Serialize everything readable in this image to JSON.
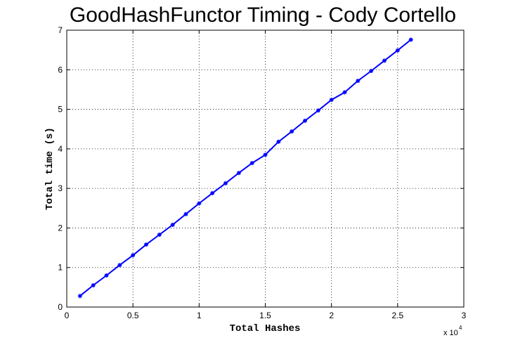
{
  "chart_data": {
    "type": "line",
    "title": "GoodHashFunctor Timing - Cody Cortello",
    "xlabel": "Total Hashes",
    "ylabel": "Total time (s)",
    "x_multiplier_label": "x 10",
    "x_multiplier_exponent": "4",
    "xlim": [
      0,
      3
    ],
    "ylim": [
      0,
      7
    ],
    "xticks": [
      "0",
      "0.5",
      "1",
      "1.5",
      "2",
      "2.5",
      "3"
    ],
    "yticks": [
      "0",
      "1",
      "2",
      "3",
      "4",
      "5",
      "6",
      "7"
    ],
    "grid": true,
    "color": "#0000ff",
    "marker": "asterisk",
    "series": [
      {
        "x": [
          0.1,
          0.2,
          0.3,
          0.4,
          0.5,
          0.6,
          0.7,
          0.8,
          0.9,
          1.0,
          1.1,
          1.2,
          1.3,
          1.4,
          1.5,
          1.6,
          1.7,
          1.8,
          1.9,
          2.0,
          2.1,
          2.2,
          2.3,
          2.4,
          2.5,
          2.6
        ],
        "values": [
          0.28,
          0.55,
          0.8,
          1.06,
          1.31,
          1.58,
          1.83,
          2.08,
          2.35,
          2.62,
          2.88,
          3.13,
          3.39,
          3.64,
          3.85,
          4.18,
          4.44,
          4.71,
          4.97,
          5.24,
          5.43,
          5.72,
          5.97,
          6.23,
          6.49,
          6.76
        ]
      }
    ]
  }
}
